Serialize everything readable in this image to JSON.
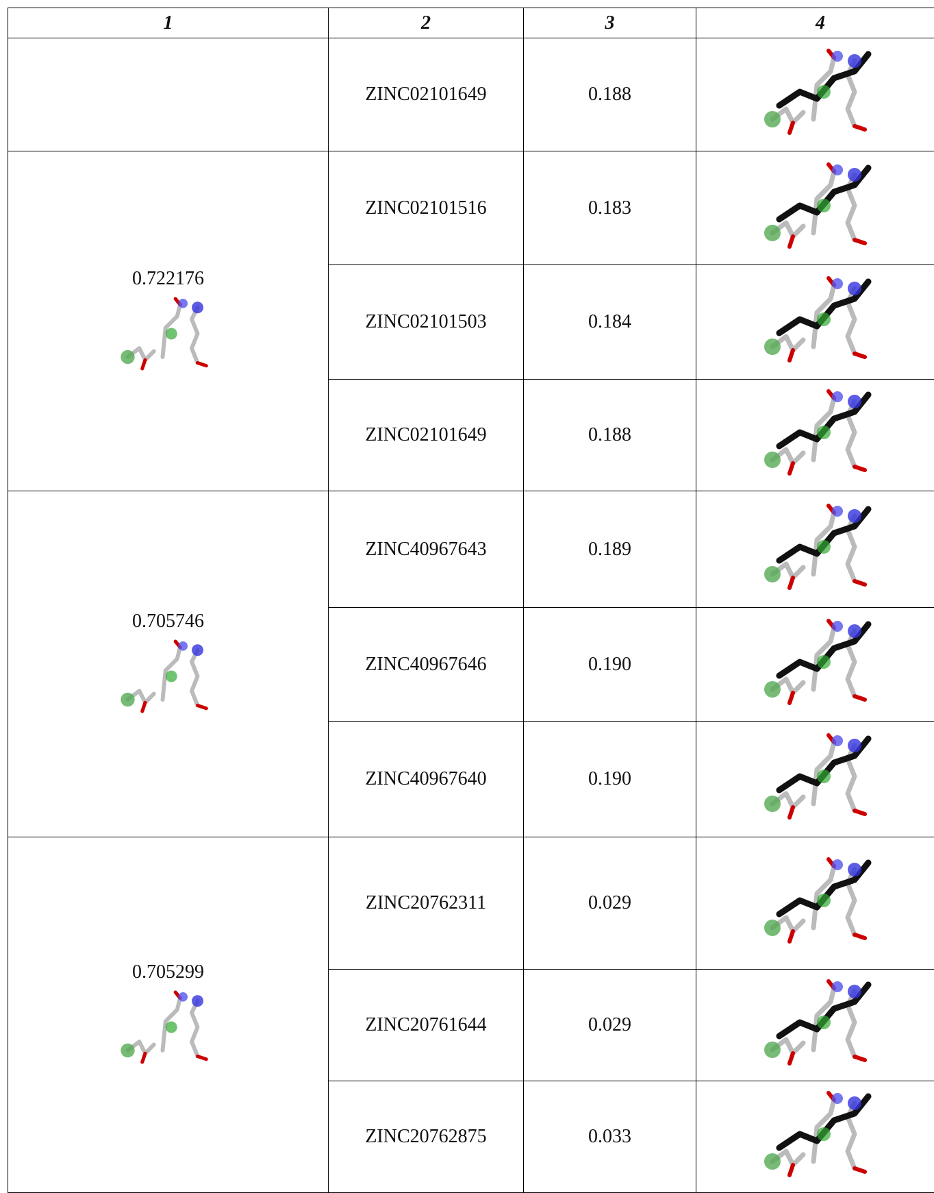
{
  "table": {
    "header": [
      "1",
      "2",
      "3",
      "4"
    ],
    "groups": [
      {
        "score": null,
        "rows": [
          {
            "id": "ZINC02101649",
            "value": "0.188"
          }
        ]
      },
      {
        "score": "0.722176",
        "rows": [
          {
            "id": "ZINC02101516",
            "value": "0.183"
          },
          {
            "id": "ZINC02101503",
            "value": "0.184"
          },
          {
            "id": "ZINC02101649",
            "value": "0.188"
          }
        ]
      },
      {
        "score": "0.705746",
        "rows": [
          {
            "id": "ZINC40967643",
            "value": "0.189"
          },
          {
            "id": "ZINC40967646",
            "value": "0.190"
          },
          {
            "id": "ZINC40967640",
            "value": "0.190"
          }
        ]
      },
      {
        "score": "0.705299",
        "rows": [
          {
            "id": "ZINC20762311",
            "value": "0.029"
          },
          {
            "id": "ZINC20761644",
            "value": "0.029"
          },
          {
            "id": "ZINC20762875",
            "value": "0.033"
          }
        ]
      }
    ]
  }
}
